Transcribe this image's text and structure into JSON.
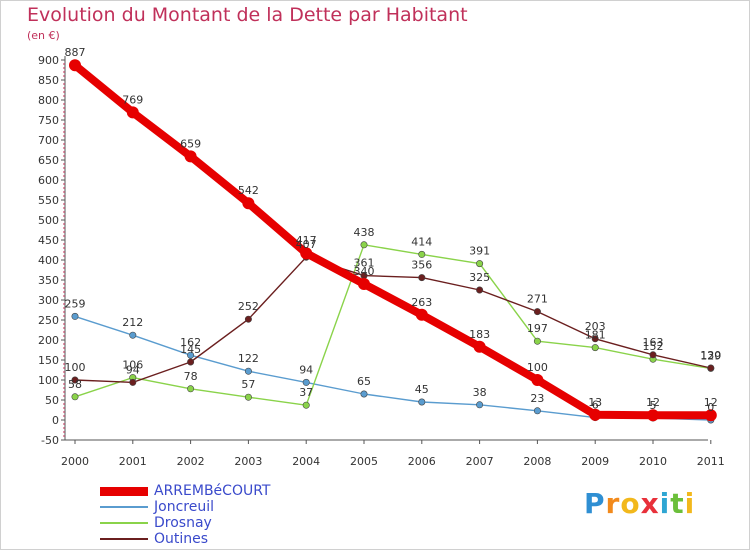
{
  "title": "Evolution du Montant de la Dette par Habitant",
  "unit_label": "(en €)",
  "brand": {
    "letters": [
      "P",
      "r",
      "o",
      "x",
      "i",
      "t",
      "i"
    ],
    "colors": [
      "#2f8fd3",
      "#f28a1c",
      "#f2b81c",
      "#e8303a",
      "#2fa6d3",
      "#6bbf3a",
      "#f2b81c"
    ]
  },
  "chart_data": {
    "type": "line",
    "title": "Evolution du Montant de la Dette par Habitant",
    "ylabel": "(en €)",
    "xlabel": "",
    "x": [
      "2000",
      "2001",
      "2002",
      "2003",
      "2004",
      "2005",
      "2006",
      "2007",
      "2008",
      "2009",
      "2010",
      "2011"
    ],
    "y_ticks": [
      "-50",
      "0",
      "50",
      "100",
      "150",
      "200",
      "250",
      "300",
      "350",
      "400",
      "450",
      "500",
      "550",
      "600",
      "650",
      "700",
      "750",
      "800",
      "850",
      "900"
    ],
    "ylim": [
      -50,
      900
    ],
    "grid": false,
    "legend_position": "bottom-left",
    "series": [
      {
        "name": "ARREMBéCOURT",
        "color": "#e60000",
        "values": [
          887,
          769,
          659,
          542,
          417,
          340,
          263,
          183,
          100,
          13,
          12,
          12
        ],
        "labels": [
          "887",
          "769",
          "659",
          "542",
          "417",
          "340",
          "263",
          "183",
          "100",
          "13",
          "12",
          "12"
        ]
      },
      {
        "name": "Joncreuil",
        "color": "#5a9ccf",
        "values": [
          259,
          212,
          162,
          122,
          94,
          65,
          45,
          38,
          23,
          6,
          5,
          0
        ],
        "labels": [
          "259",
          "212",
          "162",
          "122",
          "94",
          "65",
          "45",
          "38",
          "23",
          "6",
          "5",
          "0"
        ]
      },
      {
        "name": "Drosnay",
        "color": "#8ad34a",
        "values": [
          58,
          106,
          78,
          57,
          37,
          438,
          414,
          391,
          197,
          181,
          152,
          129
        ],
        "labels": [
          "58",
          "106",
          "78",
          "57",
          "37",
          "438",
          "414",
          "391",
          "197",
          "181",
          "152",
          "129"
        ]
      },
      {
        "name": "Outines",
        "color": "#6b1f1f",
        "values": [
          100,
          94,
          145,
          252,
          407,
          361,
          356,
          325,
          271,
          203,
          163,
          130
        ],
        "labels": [
          "100",
          "94",
          "145",
          "252",
          "407",
          "361",
          "356",
          "325",
          "271",
          "203",
          "163",
          "130"
        ]
      }
    ]
  }
}
